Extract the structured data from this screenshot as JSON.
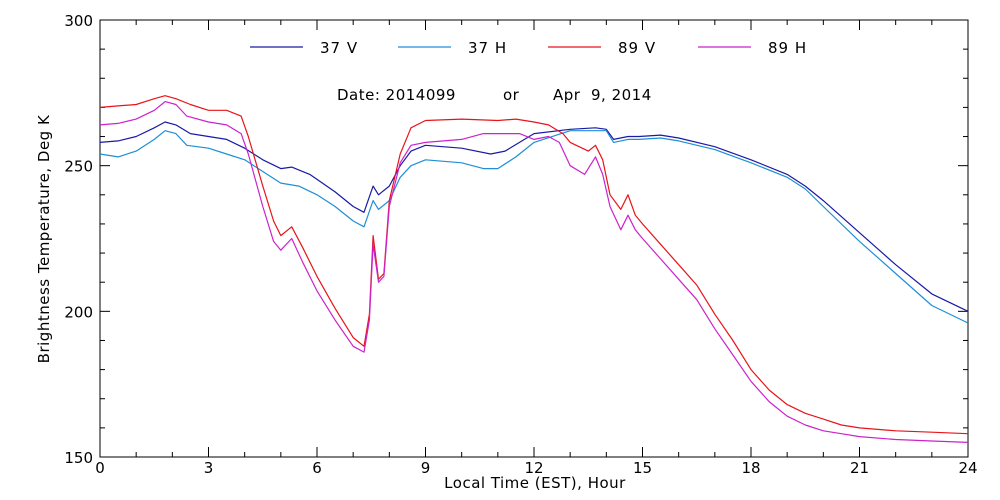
{
  "chart_data": {
    "type": "line",
    "title": "",
    "annotation": {
      "date": "Date: 2014099",
      "or": "or",
      "month_day": "Apr  9, 2014"
    },
    "xlabel": "Local Time (EST), Hour",
    "ylabel": "Brightness Temperature, Deg K",
    "xlim": [
      0,
      24
    ],
    "ylim": [
      150,
      300
    ],
    "x_ticks": [
      0,
      3,
      6,
      9,
      12,
      15,
      18,
      21,
      24
    ],
    "y_ticks": [
      150,
      200,
      250,
      300
    ],
    "legend_position": "top-center",
    "grid": false,
    "series": [
      {
        "name": "37 V",
        "color": "#1a1aa6",
        "points": [
          [
            0,
            258
          ],
          [
            0.5,
            258.5
          ],
          [
            1,
            260
          ],
          [
            1.5,
            263
          ],
          [
            1.8,
            265
          ],
          [
            2.1,
            264
          ],
          [
            2.5,
            261
          ],
          [
            3,
            260
          ],
          [
            3.5,
            259
          ],
          [
            4,
            256
          ],
          [
            4.5,
            252
          ],
          [
            5,
            249
          ],
          [
            5.3,
            249.5
          ],
          [
            5.8,
            247
          ],
          [
            6.5,
            241
          ],
          [
            7,
            236
          ],
          [
            7.3,
            234
          ],
          [
            7.55,
            243
          ],
          [
            7.7,
            240
          ],
          [
            8.0,
            243
          ],
          [
            8.3,
            250
          ],
          [
            8.6,
            255
          ],
          [
            9,
            257
          ],
          [
            10,
            256
          ],
          [
            10.8,
            254
          ],
          [
            11.2,
            255
          ],
          [
            11.6,
            258
          ],
          [
            12,
            261
          ],
          [
            13,
            262.5
          ],
          [
            13.7,
            263
          ],
          [
            14.0,
            262.5
          ],
          [
            14.2,
            259
          ],
          [
            14.6,
            260
          ],
          [
            14.9,
            260
          ],
          [
            15.5,
            260.5
          ],
          [
            16,
            259.5
          ],
          [
            17,
            256.5
          ],
          [
            18,
            252
          ],
          [
            19,
            247
          ],
          [
            19.5,
            243
          ],
          [
            20,
            238
          ],
          [
            21,
            227
          ],
          [
            22,
            216
          ],
          [
            23,
            206
          ],
          [
            24,
            200
          ]
        ]
      },
      {
        "name": "37 H",
        "color": "#1e8fd6",
        "points": [
          [
            0,
            254
          ],
          [
            0.5,
            253
          ],
          [
            1,
            255
          ],
          [
            1.5,
            259
          ],
          [
            1.8,
            262
          ],
          [
            2.1,
            261
          ],
          [
            2.4,
            257
          ],
          [
            3,
            256
          ],
          [
            3.5,
            254
          ],
          [
            4,
            252
          ],
          [
            4.5,
            248
          ],
          [
            5,
            244
          ],
          [
            5.5,
            243
          ],
          [
            6,
            240
          ],
          [
            6.5,
            236
          ],
          [
            7,
            231
          ],
          [
            7.3,
            229
          ],
          [
            7.55,
            238
          ],
          [
            7.7,
            235
          ],
          [
            8.0,
            238
          ],
          [
            8.3,
            246
          ],
          [
            8.6,
            250
          ],
          [
            9,
            252
          ],
          [
            10,
            251
          ],
          [
            10.6,
            249
          ],
          [
            11,
            249
          ],
          [
            11.5,
            253
          ],
          [
            12,
            258
          ],
          [
            13,
            262
          ],
          [
            13.7,
            262
          ],
          [
            14.0,
            262
          ],
          [
            14.2,
            258
          ],
          [
            14.6,
            259
          ],
          [
            14.9,
            259
          ],
          [
            15.5,
            259.5
          ],
          [
            16,
            258.5
          ],
          [
            17,
            255.5
          ],
          [
            18,
            251
          ],
          [
            19,
            246
          ],
          [
            19.5,
            242
          ],
          [
            20,
            236
          ],
          [
            21,
            224
          ],
          [
            22,
            213
          ],
          [
            23,
            202
          ],
          [
            24,
            196
          ]
        ]
      },
      {
        "name": "89 V",
        "color": "#e8141a",
        "points": [
          [
            0,
            270
          ],
          [
            0.5,
            270.5
          ],
          [
            1,
            271
          ],
          [
            1.5,
            273
          ],
          [
            1.8,
            274
          ],
          [
            2.1,
            273
          ],
          [
            2.5,
            271
          ],
          [
            3,
            269
          ],
          [
            3.5,
            269
          ],
          [
            3.9,
            267
          ],
          [
            4.1,
            260
          ],
          [
            4.5,
            243
          ],
          [
            4.8,
            231
          ],
          [
            5.0,
            226
          ],
          [
            5.3,
            229
          ],
          [
            5.6,
            222
          ],
          [
            6,
            212
          ],
          [
            6.5,
            201
          ],
          [
            7,
            191
          ],
          [
            7.3,
            188
          ],
          [
            7.45,
            199
          ],
          [
            7.55,
            226
          ],
          [
            7.7,
            211
          ],
          [
            7.85,
            213
          ],
          [
            8.0,
            238
          ],
          [
            8.3,
            254
          ],
          [
            8.6,
            263
          ],
          [
            9,
            265.5
          ],
          [
            10,
            266
          ],
          [
            11,
            265.5
          ],
          [
            11.5,
            266
          ],
          [
            12,
            265
          ],
          [
            12.4,
            264
          ],
          [
            12.8,
            261
          ],
          [
            13,
            258
          ],
          [
            13.5,
            255
          ],
          [
            13.7,
            257
          ],
          [
            13.9,
            252
          ],
          [
            14.1,
            240
          ],
          [
            14.4,
            235
          ],
          [
            14.6,
            240
          ],
          [
            14.8,
            233
          ],
          [
            15,
            230
          ],
          [
            15.5,
            223
          ],
          [
            16,
            216
          ],
          [
            16.5,
            209
          ],
          [
            17,
            199
          ],
          [
            17.5,
            190
          ],
          [
            18,
            180
          ],
          [
            18.5,
            173
          ],
          [
            19,
            168
          ],
          [
            19.5,
            165
          ],
          [
            20,
            163
          ],
          [
            20.5,
            161
          ],
          [
            21,
            160
          ],
          [
            22,
            159
          ],
          [
            23,
            158.5
          ],
          [
            24,
            158
          ]
        ]
      },
      {
        "name": "89 H",
        "color": "#cc22cc",
        "points": [
          [
            0,
            264
          ],
          [
            0.5,
            264.5
          ],
          [
            1,
            266
          ],
          [
            1.5,
            269
          ],
          [
            1.8,
            272
          ],
          [
            2.1,
            271
          ],
          [
            2.4,
            267
          ],
          [
            3,
            265
          ],
          [
            3.5,
            264
          ],
          [
            3.9,
            261
          ],
          [
            4.1,
            254
          ],
          [
            4.5,
            236
          ],
          [
            4.8,
            224
          ],
          [
            5.0,
            221
          ],
          [
            5.3,
            225
          ],
          [
            5.6,
            217
          ],
          [
            6,
            207
          ],
          [
            6.5,
            197
          ],
          [
            7,
            188
          ],
          [
            7.3,
            186
          ],
          [
            7.45,
            197
          ],
          [
            7.55,
            223
          ],
          [
            7.7,
            210
          ],
          [
            7.85,
            212
          ],
          [
            8.0,
            236
          ],
          [
            8.3,
            251
          ],
          [
            8.6,
            257
          ],
          [
            9,
            258
          ],
          [
            10,
            259
          ],
          [
            10.6,
            261
          ],
          [
            11,
            261
          ],
          [
            11.6,
            261
          ],
          [
            12,
            259
          ],
          [
            12.4,
            260
          ],
          [
            12.7,
            258
          ],
          [
            13,
            250
          ],
          [
            13.4,
            247
          ],
          [
            13.7,
            253
          ],
          [
            13.9,
            247
          ],
          [
            14.1,
            236
          ],
          [
            14.4,
            228
          ],
          [
            14.6,
            233
          ],
          [
            14.8,
            228
          ],
          [
            15,
            225
          ],
          [
            15.5,
            218
          ],
          [
            16,
            211
          ],
          [
            16.5,
            204
          ],
          [
            17,
            194
          ],
          [
            17.5,
            185
          ],
          [
            18,
            176
          ],
          [
            18.5,
            169
          ],
          [
            19,
            164
          ],
          [
            19.5,
            161
          ],
          [
            20,
            159
          ],
          [
            20.5,
            158
          ],
          [
            21,
            157
          ],
          [
            22,
            156
          ],
          [
            23,
            155.5
          ],
          [
            24,
            155
          ]
        ]
      }
    ]
  }
}
